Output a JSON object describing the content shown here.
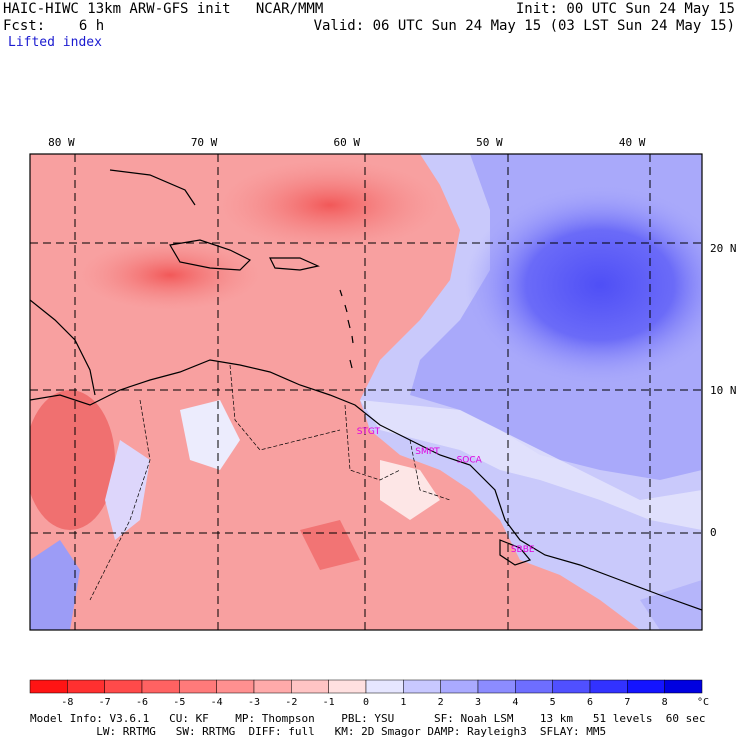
{
  "header": {
    "title": "HAIC-HIWC 13km ARW-GFS init   NCAR/MMM",
    "fcst": "Fcst:    6 h",
    "field": "Lifted index",
    "init": "Init: 00 UTC Sun 24 May 15",
    "valid": "Valid: 06 UTC Sun 24 May 15 (03 LST Sun 24 May 15)"
  },
  "map": {
    "lon_labels": [
      {
        "text": "80 W",
        "lon": -80
      },
      {
        "text": "70 W",
        "lon": -70
      },
      {
        "text": "60 W",
        "lon": -60
      },
      {
        "text": "50 W",
        "lon": -50
      },
      {
        "text": "40 W",
        "lon": -40
      }
    ],
    "lat_labels": [
      {
        "text": "20 N",
        "lat": 20
      },
      {
        "text": "10 N",
        "lat": 10
      },
      {
        "text": "0",
        "lat": 0
      }
    ],
    "lon_range": [
      -82.2,
      -35.1
    ],
    "lat_range": [
      -6.9,
      26.6
    ],
    "stations": [
      {
        "text": "STGT",
        "lon": -59.3,
        "lat": 6.9
      },
      {
        "text": "SMPT",
        "lon": -55.2,
        "lat": 5.5
      },
      {
        "text": "SOCA",
        "lon": -52.3,
        "lat": 4.9
      },
      {
        "text": "SBBE",
        "lon": -48.5,
        "lat": -1.4
      }
    ],
    "station_color": "#e000e0"
  },
  "colorbar": {
    "tick_labels": [
      "-8",
      "-7",
      "-6",
      "-5",
      "-4",
      "-3",
      "-2",
      "-1",
      "0",
      "1",
      "2",
      "3",
      "4",
      "5",
      "6",
      "7",
      "8"
    ],
    "unit": "°C",
    "colors": [
      "#ff1414",
      "#ff3030",
      "#ff4a4a",
      "#ff6262",
      "#ff7a7a",
      "#ff9090",
      "#ffaaaa",
      "#ffc4c4",
      "#ffe0e0",
      "#e6e6ff",
      "#c8c8ff",
      "#aaaaff",
      "#8c8cff",
      "#6e6eff",
      "#5050ff",
      "#3232ff",
      "#1414ff",
      "#0000e0"
    ]
  },
  "footer": {
    "line1": "Model Info: V3.6.1   CU: KF    MP: Thompson    PBL: YSU      SF: Noah LSM    13 km   51 levels  60 sec",
    "line2": "          LW: RRTMG   SW: RRTMG  DIFF: full   KM: 2D Smagor DAMP: Rayleigh3  SFLAY: MM5"
  }
}
